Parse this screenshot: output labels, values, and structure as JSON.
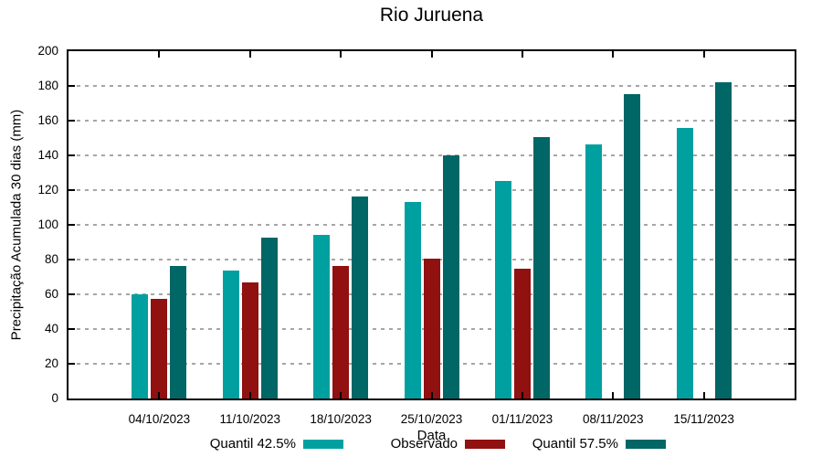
{
  "chart_data": {
    "type": "bar",
    "title": "Rio Juruena",
    "xlabel": "Data",
    "ylabel": "Precipitação Acumulada 30 dias (mm)",
    "ylim": [
      0,
      200
    ],
    "yticks": [
      0,
      20,
      40,
      60,
      80,
      100,
      120,
      140,
      160,
      180,
      200
    ],
    "grid": "horizontal-dashed",
    "legend_position": "bottom",
    "categories": [
      "04/10/2023",
      "11/10/2023",
      "18/10/2023",
      "25/10/2023",
      "01/11/2023",
      "08/11/2023",
      "15/11/2023"
    ],
    "series": [
      {
        "name": "Quantil 42.5%",
        "color": "#00A0A0",
        "values": [
          60,
          73.5,
          94,
          113,
          125.5,
          146.5,
          156
        ]
      },
      {
        "name": "Observado",
        "color": "#911010",
        "values": [
          57.5,
          67,
          76.5,
          80.5,
          75,
          null,
          null
        ]
      },
      {
        "name": "Quantil 57.5%",
        "color": "#006666",
        "values": [
          76.5,
          92.5,
          116.5,
          140,
          150.5,
          175.5,
          182
        ]
      }
    ]
  },
  "style": {
    "background": "#ffffff",
    "axis_color": "#000000",
    "grid_color": "#a6a6a6",
    "text_color": "#000000"
  }
}
